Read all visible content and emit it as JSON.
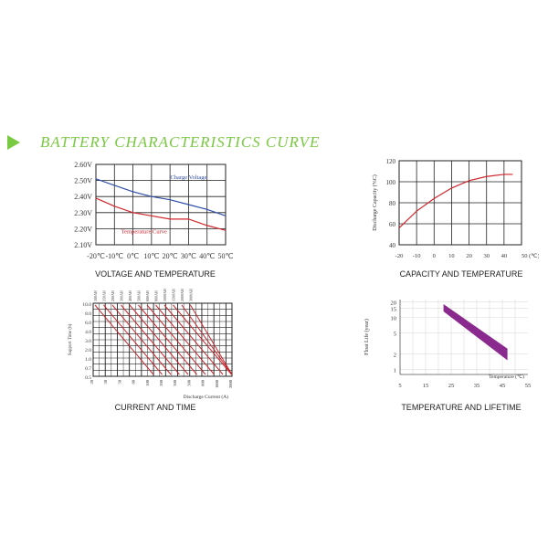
{
  "header": {
    "title": "BATTERY  CHARACTERISTICS CURVE"
  },
  "chart_data": [
    {
      "type": "line",
      "caption": "VOLTAGE AND TEMPERATURE",
      "x_ticks": [
        "-20℃",
        "-10℃",
        "0℃",
        "10℃",
        "20℃",
        "30℃",
        "40℃",
        "50℃"
      ],
      "y_ticks": [
        "2.60V",
        "2.50V",
        "2.40V",
        "2.30V",
        "2.20V",
        "2.10V"
      ],
      "xlim": [
        -20,
        50
      ],
      "ylim": [
        2.1,
        2.6
      ],
      "series": [
        {
          "name": "Charge Voltage",
          "color": "#2f4fa8",
          "x": [
            -20,
            -10,
            0,
            10,
            20,
            30,
            40,
            50
          ],
          "y": [
            2.51,
            2.47,
            2.43,
            2.4,
            2.38,
            2.35,
            2.32,
            2.28
          ]
        },
        {
          "name": "Temperature Curve",
          "color": "#d0262c",
          "x": [
            -20,
            -10,
            0,
            10,
            20,
            30,
            40,
            50
          ],
          "y": [
            2.39,
            2.34,
            2.3,
            2.28,
            2.26,
            2.26,
            2.22,
            2.19
          ]
        }
      ],
      "grid": true
    },
    {
      "type": "line",
      "caption": "CAPACITY AND TEMPERATURE",
      "ylabel": "Discharge Capacity (%C)",
      "x_ticks": [
        "-20",
        "-10",
        "0",
        "10",
        "20",
        "30",
        "40",
        "50 (℃)"
      ],
      "y_ticks": [
        "120",
        "100",
        "80",
        "60",
        "40"
      ],
      "xlim": [
        -20,
        50
      ],
      "ylim": [
        40,
        120
      ],
      "series": [
        {
          "color": "#d0262c",
          "x": [
            -20,
            -10,
            0,
            10,
            20,
            30,
            40,
            45
          ],
          "y": [
            56,
            72,
            84,
            94,
            101,
            105,
            107,
            107
          ]
        }
      ],
      "grid": true
    },
    {
      "type": "line",
      "caption": "CURRENT AND TIME",
      "ylabel": "Support Time (h)",
      "xlabel": "Discharge Current (A)",
      "x_ticks": [
        "20",
        "30",
        "50",
        "80",
        "100",
        "200",
        "300",
        "500",
        "800",
        "1000",
        "2000"
      ],
      "y_ticks": [
        "10.0",
        "8.0",
        "6.0",
        "4.0",
        "3.0",
        "2.0",
        "1.0",
        "0.7",
        "0.5"
      ],
      "top_labels": [
        "100AH",
        "150AH",
        "200AH",
        "300AH",
        "400AH",
        "500AH",
        "600AH",
        "800AH",
        "1000AH",
        "1500AH",
        "2000AH",
        "3000AH"
      ],
      "series_count": 12,
      "grid": true
    },
    {
      "type": "area",
      "caption": "TEMPERATURE AND LIFETIME",
      "ylabel": "Float Life (year)",
      "xlabel": "Temperature (℃)",
      "x_ticks": [
        "5",
        "15",
        "25",
        "35",
        "45",
        "55"
      ],
      "y_ticks": [
        "20",
        "15",
        "10",
        "5",
        "2",
        "1"
      ],
      "band_color": "#8b2a8e",
      "band": {
        "x": [
          22,
          47
        ],
        "upper": [
          18,
          2.5
        ],
        "lower": [
          13,
          1.5
        ]
      },
      "grid": true
    }
  ]
}
